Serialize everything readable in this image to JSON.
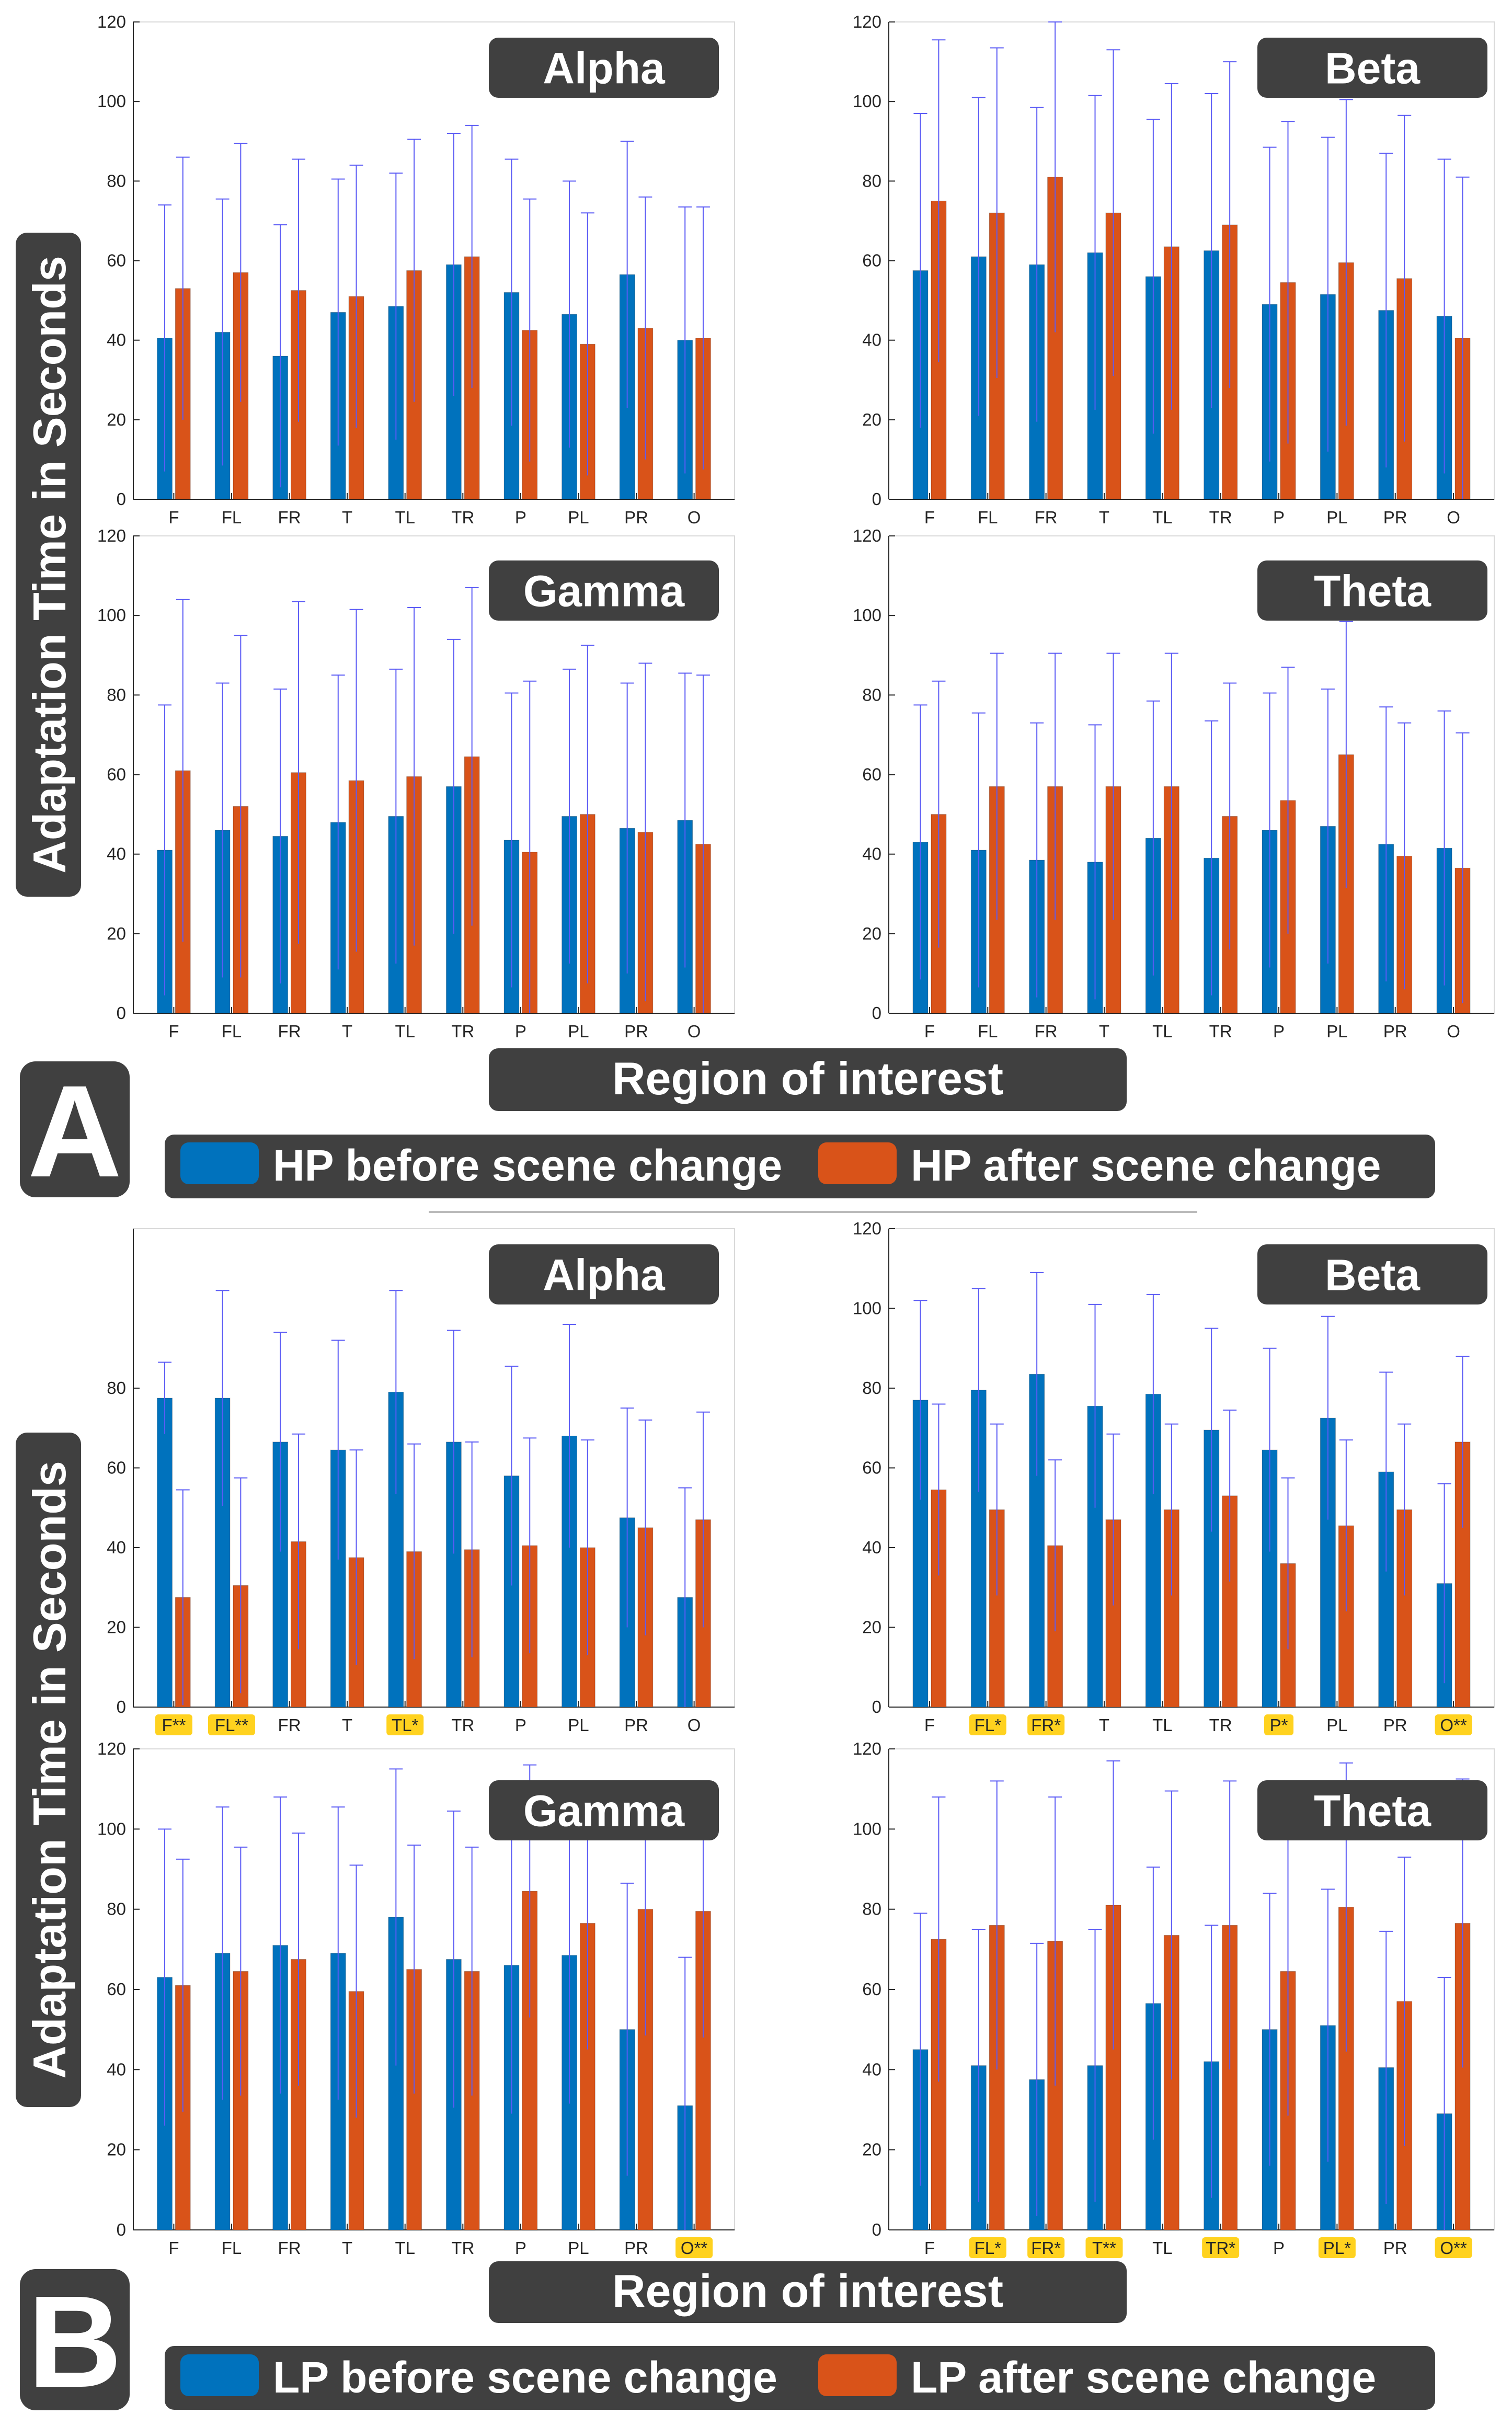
{
  "figure": {
    "ylabel": "Adaptation Time in Seconds",
    "xlabel": "Region of interest"
  },
  "sections": [
    {
      "letter": "A",
      "legend": [
        {
          "label": "HP before scene change",
          "color": "#0072BD"
        },
        {
          "label": "HP after scene change",
          "color": "#D95319"
        }
      ]
    },
    {
      "letter": "B",
      "legend": [
        {
          "label": "LP before scene change",
          "color": "#0072BD"
        },
        {
          "label": "LP after scene change",
          "color": "#D95319"
        }
      ]
    }
  ],
  "colors": {
    "before": "#0072BD",
    "after": "#D95319",
    "error_bar": "#5b5bf5",
    "label_box": "#404040",
    "highlight": "#FFD21F"
  },
  "chart_data": [
    {
      "type": "bar",
      "section": "A",
      "title": "Alpha",
      "categories": [
        "F",
        "FL",
        "FR",
        "T",
        "TL",
        "TR",
        "P",
        "PL",
        "PR",
        "O"
      ],
      "highlight": [],
      "ylim": [
        0,
        120
      ],
      "yticks": [
        0,
        20,
        40,
        60,
        80,
        100,
        120
      ],
      "series": [
        {
          "name": "HP before scene change",
          "values": [
            40.5,
            42,
            36,
            47,
            48.5,
            59,
            52,
            46.5,
            56.5,
            40
          ],
          "err_hi": [
            74,
            75.5,
            69,
            80.5,
            82,
            92,
            85.5,
            80,
            90,
            73.5
          ]
        },
        {
          "name": "HP after scene change",
          "values": [
            53,
            57,
            52.5,
            51,
            57.5,
            61,
            42.5,
            39,
            43,
            40.5
          ],
          "err_hi": [
            86,
            89.5,
            85.5,
            84,
            90.5,
            94,
            75.5,
            72,
            76,
            73.5
          ]
        }
      ]
    },
    {
      "type": "bar",
      "section": "A",
      "title": "Beta",
      "categories": [
        "F",
        "FL",
        "FR",
        "T",
        "TL",
        "TR",
        "P",
        "PL",
        "PR",
        "O"
      ],
      "highlight": [],
      "ylim": [
        0,
        120
      ],
      "yticks": [
        0,
        20,
        40,
        60,
        80,
        100,
        120
      ],
      "series": [
        {
          "name": "HP before scene change",
          "values": [
            57.5,
            61,
            59,
            62,
            56,
            62.5,
            49,
            51.5,
            47.5,
            46
          ],
          "err_hi": [
            97,
            101,
            98.5,
            101.5,
            95.5,
            102,
            88.5,
            91,
            87,
            85.5
          ]
        },
        {
          "name": "HP after scene change",
          "values": [
            75,
            72,
            81,
            72,
            63.5,
            69,
            54.5,
            59.5,
            55.5,
            40.5
          ],
          "err_hi": [
            115.5,
            113.5,
            120,
            113,
            104.5,
            110,
            95,
            100.5,
            96.5,
            81
          ]
        }
      ]
    },
    {
      "type": "bar",
      "section": "A",
      "title": "Gamma",
      "categories": [
        "F",
        "FL",
        "FR",
        "T",
        "TL",
        "TR",
        "P",
        "PL",
        "PR",
        "O"
      ],
      "highlight": [],
      "ylim": [
        0,
        120
      ],
      "yticks": [
        0,
        20,
        40,
        60,
        80,
        100,
        120
      ],
      "series": [
        {
          "name": "HP before scene change",
          "values": [
            41,
            46,
            44.5,
            48,
            49.5,
            57,
            43.5,
            49.5,
            46.5,
            48.5
          ],
          "err_hi": [
            77.5,
            83,
            81.5,
            85,
            86.5,
            94,
            80.5,
            86.5,
            83,
            85.5
          ]
        },
        {
          "name": "HP after scene change",
          "values": [
            61,
            52,
            60.5,
            58.5,
            59.5,
            64.5,
            40.5,
            50,
            45.5,
            42.5
          ],
          "err_hi": [
            104,
            95,
            103.5,
            101.5,
            102,
            107,
            83.5,
            92.5,
            88,
            85
          ]
        }
      ]
    },
    {
      "type": "bar",
      "section": "A",
      "title": "Theta",
      "categories": [
        "F",
        "FL",
        "FR",
        "T",
        "TL",
        "TR",
        "P",
        "PL",
        "PR",
        "O"
      ],
      "highlight": [],
      "ylim": [
        0,
        120
      ],
      "yticks": [
        0,
        20,
        40,
        60,
        80,
        100,
        120
      ],
      "series": [
        {
          "name": "HP before scene change",
          "values": [
            43,
            41,
            38.5,
            38,
            44,
            39,
            46,
            47,
            42.5,
            41.5
          ],
          "err_hi": [
            77.5,
            75.5,
            73,
            72.5,
            78.5,
            73.5,
            80.5,
            81.5,
            77,
            76
          ]
        },
        {
          "name": "HP after scene change",
          "values": [
            50,
            57,
            57,
            57,
            57,
            49.5,
            53.5,
            65,
            39.5,
            36.5
          ],
          "err_hi": [
            83.5,
            90.5,
            90.5,
            90.5,
            90.5,
            83,
            87,
            98.5,
            73,
            70.5
          ]
        }
      ]
    },
    {
      "type": "bar",
      "section": "B",
      "title": "Alpha",
      "categories": [
        "F**",
        "FL**",
        "FR",
        "T",
        "TL*",
        "TR",
        "P",
        "PL",
        "PR",
        "O"
      ],
      "highlight": [
        true,
        true,
        false,
        false,
        true,
        false,
        false,
        false,
        false,
        false
      ],
      "ylim": [
        0,
        120
      ],
      "yticks": [
        0,
        20,
        40,
        60,
        80
      ],
      "series": [
        {
          "name": "LP before scene change",
          "values": [
            77.5,
            77.5,
            66.5,
            64.5,
            79,
            66.5,
            58,
            68,
            47.5,
            27.5
          ],
          "err_hi": [
            86.5,
            104.5,
            94,
            92,
            104.5,
            94.5,
            85.5,
            96,
            75,
            55
          ]
        },
        {
          "name": "LP after scene change",
          "values": [
            27.5,
            30.5,
            41.5,
            37.5,
            39,
            39.5,
            40.5,
            40,
            45,
            47
          ],
          "err_hi": [
            54.5,
            57.5,
            68.5,
            64.5,
            66,
            66.5,
            67.5,
            67,
            72,
            74
          ]
        }
      ]
    },
    {
      "type": "bar",
      "section": "B",
      "title": "Beta",
      "categories": [
        "F",
        "FL*",
        "FR*",
        "T",
        "TL",
        "TR",
        "P*",
        "PL",
        "PR",
        "O**"
      ],
      "highlight": [
        false,
        true,
        true,
        false,
        false,
        false,
        true,
        false,
        false,
        true
      ],
      "ylim": [
        0,
        120
      ],
      "yticks": [
        0,
        20,
        40,
        60,
        80,
        100,
        120
      ],
      "series": [
        {
          "name": "LP before scene change",
          "values": [
            77,
            79.5,
            83.5,
            75.5,
            78.5,
            69.5,
            64.5,
            72.5,
            59,
            31
          ],
          "err_hi": [
            102,
            105,
            109,
            101,
            103.5,
            95,
            90,
            98,
            84,
            56
          ]
        },
        {
          "name": "LP after scene change",
          "values": [
            54.5,
            49.5,
            40.5,
            47,
            49.5,
            53,
            36,
            45.5,
            49.5,
            66.5
          ],
          "err_hi": [
            76,
            71,
            62,
            68.5,
            71,
            74.5,
            57.5,
            67,
            71,
            88
          ]
        }
      ]
    },
    {
      "type": "bar",
      "section": "B",
      "title": "Gamma",
      "categories": [
        "F",
        "FL",
        "FR",
        "T",
        "TL",
        "TR",
        "P",
        "PL",
        "PR",
        "O**"
      ],
      "highlight": [
        false,
        false,
        false,
        false,
        false,
        false,
        false,
        false,
        false,
        true
      ],
      "ylim": [
        0,
        120
      ],
      "yticks": [
        0,
        20,
        40,
        60,
        80,
        100,
        120
      ],
      "series": [
        {
          "name": "LP before scene change",
          "values": [
            63,
            69,
            71,
            69,
            78,
            67.5,
            66,
            68.5,
            50,
            31
          ],
          "err_hi": [
            100,
            105.5,
            108,
            105.5,
            115,
            104.5,
            103,
            105.5,
            86.5,
            68
          ]
        },
        {
          "name": "LP after scene change",
          "values": [
            61,
            64.5,
            67.5,
            59.5,
            65,
            64.5,
            84.5,
            76.5,
            80,
            79.5
          ],
          "err_hi": [
            92.5,
            95.5,
            99,
            91,
            96,
            95.5,
            116,
            108,
            111.5,
            111
          ]
        }
      ]
    },
    {
      "type": "bar",
      "section": "B",
      "title": "Theta",
      "categories": [
        "F",
        "FL*",
        "FR*",
        "T**",
        "TL",
        "TR*",
        "P",
        "PL*",
        "PR",
        "O**"
      ],
      "highlight": [
        false,
        true,
        true,
        true,
        false,
        true,
        false,
        true,
        false,
        true
      ],
      "ylim": [
        0,
        120
      ],
      "yticks": [
        0,
        20,
        40,
        60,
        80,
        100,
        120
      ],
      "series": [
        {
          "name": "LP before scene change",
          "values": [
            45,
            41,
            37.5,
            41,
            56.5,
            42,
            50,
            51,
            40.5,
            29
          ],
          "err_hi": [
            79,
            75,
            71.5,
            75,
            90.5,
            76,
            84,
            85,
            74.5,
            63
          ]
        },
        {
          "name": "LP after scene change",
          "values": [
            72.5,
            76,
            72,
            81,
            73.5,
            76,
            64.5,
            80.5,
            57,
            76.5
          ],
          "err_hi": [
            108,
            112,
            108,
            117,
            109.5,
            112,
            100.5,
            116.5,
            93,
            112.5
          ]
        }
      ]
    }
  ]
}
